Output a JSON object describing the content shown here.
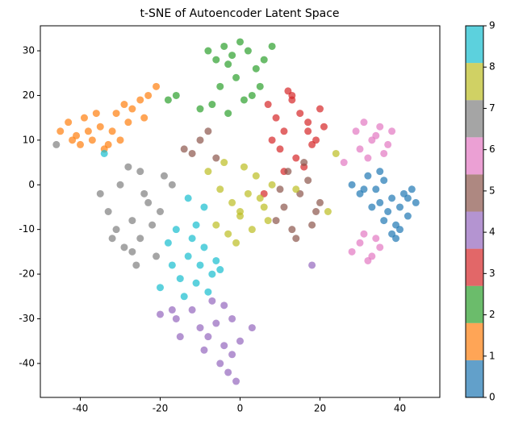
{
  "chart_data": {
    "type": "scatter",
    "title": "t-SNE of Autoencoder Latent Space",
    "xlim": [
      -50,
      50
    ],
    "xticks": [
      -40,
      -20,
      0,
      20,
      40
    ],
    "ylim": [
      -47.6,
      35.6
    ],
    "yticks": [
      -40,
      -30,
      -20,
      -10,
      0,
      10,
      20,
      30
    ],
    "alpha": 0.7,
    "colorbar": {
      "lim": [
        0,
        9
      ],
      "ticks": [
        0,
        1,
        2,
        3,
        4,
        5,
        6,
        7,
        8,
        9
      ]
    },
    "series": [
      {
        "color": "#1f77b4",
        "x": [
          28,
          30,
          32,
          34,
          35,
          36,
          37,
          38,
          39,
          40,
          41,
          42,
          43,
          44,
          33,
          36,
          38,
          40,
          35,
          31,
          39,
          42
        ],
        "y": [
          0,
          -2,
          2,
          -1,
          -4,
          1,
          -6,
          -3,
          -9,
          -5,
          -2,
          -7,
          -1,
          -4,
          -5,
          -8,
          -11,
          -10,
          3,
          -1,
          -12,
          -3
        ]
      },
      {
        "color": "#ff7f0e",
        "x": [
          -45,
          -43,
          -41,
          -39,
          -37,
          -35,
          -33,
          -31,
          -29,
          -27,
          -25,
          -23,
          -21,
          -40,
          -36,
          -32,
          -28,
          -24,
          -34,
          -30,
          -42,
          -38
        ],
        "y": [
          12,
          14,
          11,
          15,
          10,
          13,
          9,
          16,
          18,
          17,
          19,
          20,
          22,
          9,
          16,
          12,
          14,
          15,
          8,
          10,
          10,
          12
        ]
      },
      {
        "color": "#2ca02c",
        "x": [
          -8,
          -6,
          -4,
          -2,
          0,
          2,
          4,
          6,
          -5,
          -1,
          3,
          -7,
          -3,
          1,
          5,
          8,
          -10,
          -18,
          -16,
          -3
        ],
        "y": [
          30,
          28,
          31,
          29,
          32,
          30,
          26,
          28,
          22,
          24,
          20,
          18,
          16,
          19,
          22,
          31,
          17,
          19,
          20,
          27
        ]
      },
      {
        "color": "#d62728",
        "x": [
          7,
          9,
          11,
          13,
          15,
          17,
          19,
          21,
          10,
          14,
          18,
          12,
          16,
          20,
          8,
          13,
          17,
          11,
          6
        ],
        "y": [
          18,
          15,
          12,
          19,
          16,
          14,
          10,
          13,
          8,
          6,
          9,
          21,
          4,
          17,
          10,
          20,
          12,
          3,
          -2
        ]
      },
      {
        "color": "#9467bd",
        "x": [
          -20,
          -16,
          -12,
          -10,
          -8,
          -6,
          -4,
          -2,
          0,
          -5,
          -3,
          -1,
          -9,
          -7,
          -15,
          -17,
          3,
          -4,
          -2,
          18
        ],
        "y": [
          -29,
          -30,
          -28,
          -32,
          -34,
          -31,
          -36,
          -38,
          -35,
          -40,
          -42,
          -44,
          -37,
          -26,
          -34,
          -28,
          -32,
          -27,
          -30,
          -18
        ]
      },
      {
        "color": "#8c564b",
        "x": [
          9,
          11,
          13,
          15,
          17,
          19,
          12,
          14,
          16,
          10,
          18,
          20,
          -12,
          -10,
          -8,
          -14,
          -6
        ],
        "y": [
          -8,
          -5,
          -10,
          -2,
          1,
          -6,
          3,
          -12,
          5,
          -1,
          -9,
          -4,
          7,
          10,
          12,
          8,
          6
        ]
      },
      {
        "color": "#e377c2",
        "x": [
          29,
          31,
          33,
          35,
          37,
          30,
          32,
          34,
          36,
          38,
          28,
          30,
          32,
          34,
          31,
          33,
          35,
          26
        ],
        "y": [
          12,
          14,
          10,
          13,
          9,
          8,
          6,
          11,
          7,
          12,
          -15,
          -13,
          -17,
          -12,
          -11,
          -16,
          -14,
          5
        ]
      },
      {
        "color": "#7f7f7f",
        "x": [
          -35,
          -33,
          -31,
          -29,
          -27,
          -25,
          -23,
          -21,
          -19,
          -17,
          -28,
          -26,
          -24,
          -30,
          -22,
          -20,
          -32,
          -27,
          -25,
          -46
        ],
        "y": [
          -2,
          -6,
          -10,
          -14,
          -8,
          -12,
          -4,
          -16,
          2,
          0,
          4,
          -18,
          -2,
          0,
          -9,
          -6,
          -12,
          -15,
          3,
          9
        ]
      },
      {
        "color": "#bcbd22",
        "x": [
          -8,
          -5,
          -2,
          0,
          2,
          4,
          6,
          8,
          -3,
          1,
          3,
          5,
          -6,
          -1,
          7,
          -4,
          0,
          22,
          24,
          14
        ],
        "y": [
          3,
          -1,
          -4,
          -7,
          -2,
          2,
          -5,
          0,
          -11,
          4,
          -10,
          -3,
          -9,
          -13,
          -8,
          5,
          -6,
          -6,
          7,
          -1
        ]
      },
      {
        "color": "#17becf",
        "x": [
          -20,
          -17,
          -15,
          -13,
          -11,
          -9,
          -7,
          -5,
          -14,
          -12,
          -10,
          -8,
          -16,
          -18,
          -6,
          -9,
          -11,
          -13,
          -34
        ],
        "y": [
          -23,
          -18,
          -21,
          -16,
          -22,
          -14,
          -20,
          -19,
          -25,
          -12,
          -18,
          -24,
          -10,
          -13,
          -17,
          -5,
          -9,
          -3,
          7
        ]
      }
    ]
  }
}
